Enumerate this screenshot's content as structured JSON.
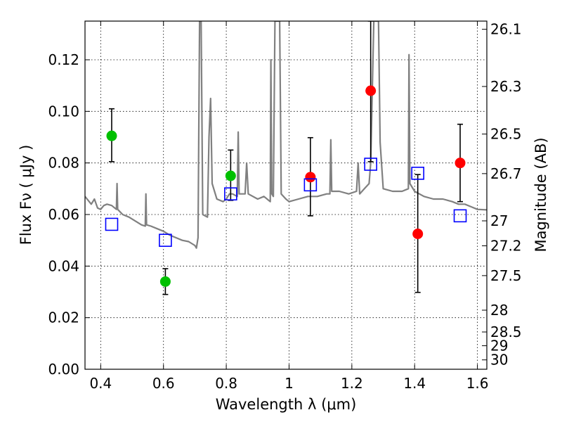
{
  "chart_data": {
    "type": "scatter",
    "xlabel": "Wavelength  λ (μm)",
    "ylabel": "Flux  Fν  ( μJy )",
    "y2label": "Magnitude (AB)",
    "xlim": [
      0.35,
      1.63
    ],
    "ylim": [
      0.0,
      0.135
    ],
    "grid": true,
    "x_ticks": [
      0.4,
      0.6,
      0.8,
      1.0,
      1.2,
      1.4,
      1.6
    ],
    "x_tick_labels": [
      "0.4",
      "0.6",
      "0.8",
      "1",
      "1.2",
      "1.4",
      "1.6"
    ],
    "y_ticks": [
      0.0,
      0.02,
      0.04,
      0.06,
      0.08,
      0.1,
      0.12
    ],
    "y_tick_labels": [
      "0.00",
      "0.02",
      "0.04",
      "0.06",
      "0.08",
      "0.10",
      "0.12"
    ],
    "y2_ticks": [
      {
        "mag": 26.1,
        "label": "26.1"
      },
      {
        "mag": 26.3,
        "label": "26.3"
      },
      {
        "mag": 26.5,
        "label": "26.5"
      },
      {
        "mag": 26.7,
        "label": "26.7"
      },
      {
        "mag": 27.0,
        "label": "27"
      },
      {
        "mag": 27.2,
        "label": "27.2"
      },
      {
        "mag": 27.5,
        "label": "27.5"
      },
      {
        "mag": 28.0,
        "label": "28"
      },
      {
        "mag": 28.5,
        "label": "28.5"
      },
      {
        "mag": 29.0,
        "label": "29"
      },
      {
        "mag": 30.0,
        "label": "30"
      }
    ],
    "y2_zero_point_mag": 23.9,
    "series": [
      {
        "marker": "circle",
        "color": "#00c000",
        "points": [
          {
            "x": 0.435,
            "y": 0.0905,
            "yerr_low": 0.0805,
            "yerr_high": 0.101
          },
          {
            "x": 0.606,
            "y": 0.034,
            "yerr_low": 0.029,
            "yerr_high": 0.039
          },
          {
            "x": 0.814,
            "y": 0.075,
            "yerr_low": 0.0655,
            "yerr_high": 0.085
          }
        ]
      },
      {
        "marker": "circle",
        "color": "#ff0000",
        "points": [
          {
            "x": 1.068,
            "y": 0.0745,
            "yerr_low": 0.0595,
            "yerr_high": 0.0898
          },
          {
            "x": 1.26,
            "y": 0.108,
            "yerr_low": 0.0805,
            "yerr_high": 0.135
          },
          {
            "x": 1.41,
            "y": 0.0525,
            "yerr_low": 0.0298,
            "yerr_high": 0.0755
          },
          {
            "x": 1.545,
            "y": 0.08,
            "yerr_low": 0.065,
            "yerr_high": 0.095
          }
        ]
      },
      {
        "marker": "open-square",
        "color": "#0000ff",
        "points": [
          {
            "x": 0.435,
            "y": 0.0562
          },
          {
            "x": 0.606,
            "y": 0.05
          },
          {
            "x": 0.814,
            "y": 0.068
          },
          {
            "x": 1.068,
            "y": 0.0715
          },
          {
            "x": 1.26,
            "y": 0.0795
          },
          {
            "x": 1.41,
            "y": 0.076
          },
          {
            "x": 1.545,
            "y": 0.0595
          }
        ]
      }
    ],
    "spectrum": {
      "color": "#808080",
      "points": [
        [
          0.35,
          0.067
        ],
        [
          0.37,
          0.064
        ],
        [
          0.38,
          0.066
        ],
        [
          0.39,
          0.0625
        ],
        [
          0.4,
          0.062
        ],
        [
          0.41,
          0.0635
        ],
        [
          0.42,
          0.064
        ],
        [
          0.435,
          0.0635
        ],
        [
          0.45,
          0.062
        ],
        [
          0.452,
          0.072
        ],
        [
          0.454,
          0.062
        ],
        [
          0.47,
          0.06
        ],
        [
          0.49,
          0.059
        ],
        [
          0.51,
          0.0575
        ],
        [
          0.53,
          0.056
        ],
        [
          0.542,
          0.0555
        ],
        [
          0.544,
          0.068
        ],
        [
          0.546,
          0.056
        ],
        [
          0.56,
          0.0555
        ],
        [
          0.58,
          0.0545
        ],
        [
          0.6,
          0.0535
        ],
        [
          0.62,
          0.052
        ],
        [
          0.64,
          0.051
        ],
        [
          0.66,
          0.05
        ],
        [
          0.68,
          0.0495
        ],
        [
          0.7,
          0.048
        ],
        [
          0.705,
          0.047
        ],
        [
          0.71,
          0.051
        ],
        [
          0.715,
          0.135
        ],
        [
          0.72,
          0.135
        ],
        [
          0.725,
          0.06
        ],
        [
          0.74,
          0.059
        ],
        [
          0.745,
          0.09
        ],
        [
          0.75,
          0.105
        ],
        [
          0.755,
          0.072
        ],
        [
          0.77,
          0.066
        ],
        [
          0.79,
          0.065
        ],
        [
          0.8,
          0.066
        ],
        [
          0.81,
          0.068
        ],
        [
          0.82,
          0.068
        ],
        [
          0.835,
          0.067
        ],
        [
          0.838,
          0.092
        ],
        [
          0.841,
          0.068
        ],
        [
          0.86,
          0.068
        ],
        [
          0.865,
          0.08
        ],
        [
          0.87,
          0.068
        ],
        [
          0.9,
          0.066
        ],
        [
          0.92,
          0.067
        ],
        [
          0.94,
          0.065
        ],
        [
          0.942,
          0.12
        ],
        [
          0.945,
          0.068
        ],
        [
          0.95,
          0.067
        ],
        [
          0.955,
          0.135
        ],
        [
          0.96,
          0.135
        ],
        [
          0.965,
          0.135
        ],
        [
          0.97,
          0.135
        ],
        [
          0.975,
          0.068
        ],
        [
          0.99,
          0.066
        ],
        [
          1.0,
          0.065
        ],
        [
          1.03,
          0.066
        ],
        [
          1.06,
          0.067
        ],
        [
          1.09,
          0.067
        ],
        [
          1.12,
          0.068
        ],
        [
          1.13,
          0.068
        ],
        [
          1.133,
          0.089
        ],
        [
          1.136,
          0.069
        ],
        [
          1.16,
          0.069
        ],
        [
          1.19,
          0.068
        ],
        [
          1.215,
          0.069
        ],
        [
          1.22,
          0.08
        ],
        [
          1.225,
          0.068
        ],
        [
          1.24,
          0.07
        ],
        [
          1.255,
          0.072
        ],
        [
          1.26,
          0.08
        ],
        [
          1.27,
          0.135
        ],
        [
          1.285,
          0.135
        ],
        [
          1.29,
          0.088
        ],
        [
          1.3,
          0.07
        ],
        [
          1.33,
          0.069
        ],
        [
          1.36,
          0.069
        ],
        [
          1.38,
          0.07
        ],
        [
          1.382,
          0.122
        ],
        [
          1.385,
          0.072
        ],
        [
          1.4,
          0.069
        ],
        [
          1.43,
          0.067
        ],
        [
          1.46,
          0.066
        ],
        [
          1.49,
          0.066
        ],
        [
          1.52,
          0.065
        ],
        [
          1.54,
          0.064
        ],
        [
          1.56,
          0.064
        ],
        [
          1.58,
          0.063
        ],
        [
          1.6,
          0.062
        ],
        [
          1.63,
          0.0618
        ]
      ]
    }
  }
}
